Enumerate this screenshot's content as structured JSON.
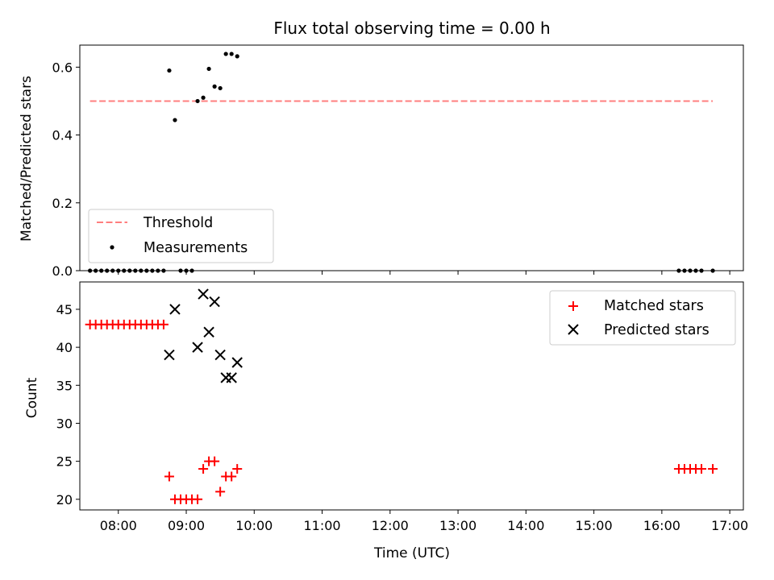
{
  "chart_data": {
    "type": "scatter",
    "title": "Flux total observing time = 0.00 h",
    "xlabel": "Time (UTC)",
    "x_ticks": [
      "08:00",
      "09:00",
      "10:00",
      "11:00",
      "12:00",
      "13:00",
      "14:00",
      "15:00",
      "16:00",
      "17:00"
    ],
    "x_range": [
      "07:26",
      "17:12"
    ],
    "panels": [
      {
        "ylabel": "Matched/Predicted stars",
        "ylim": [
          0.0,
          0.665
        ],
        "y_ticks": [
          0.0,
          0.2,
          0.4,
          0.6
        ],
        "y_tick_labels": [
          "0.0",
          "0.2",
          "0.4",
          "0.6"
        ],
        "legend_position": "lower-left",
        "threshold": {
          "name": "Threshold",
          "value": 0.5,
          "x": [
            "07:35",
            "16:45"
          ],
          "color": "#ff7f7f"
        },
        "measurements": {
          "name": "Measurements",
          "color": "#000000",
          "points": [
            [
              "07:35",
              0
            ],
            [
              "07:40",
              0
            ],
            [
              "07:45",
              0
            ],
            [
              "07:50",
              0
            ],
            [
              "07:55",
              0
            ],
            [
              "08:00",
              0
            ],
            [
              "08:05",
              0
            ],
            [
              "08:10",
              0
            ],
            [
              "08:15",
              0
            ],
            [
              "08:20",
              0
            ],
            [
              "08:25",
              0
            ],
            [
              "08:30",
              0
            ],
            [
              "08:35",
              0
            ],
            [
              "08:40",
              0
            ],
            [
              "08:45",
              0.59
            ],
            [
              "08:50",
              0.444
            ],
            [
              "08:55",
              0
            ],
            [
              "09:00",
              0
            ],
            [
              "09:05",
              0
            ],
            [
              "09:10",
              0.5
            ],
            [
              "09:15",
              0.51
            ],
            [
              "09:20",
              0.595
            ],
            [
              "09:25",
              0.543
            ],
            [
              "09:30",
              0.538
            ],
            [
              "09:35",
              0.639
            ],
            [
              "09:40",
              0.639
            ],
            [
              "09:45",
              0.632
            ],
            [
              "16:15",
              0
            ],
            [
              "16:20",
              0
            ],
            [
              "16:25",
              0
            ],
            [
              "16:30",
              0
            ],
            [
              "16:35",
              0
            ],
            [
              "16:45",
              0
            ]
          ]
        }
      },
      {
        "ylabel": "Count",
        "ylim": [
          18.6,
          48.6
        ],
        "y_ticks": [
          20,
          25,
          30,
          35,
          40,
          45
        ],
        "y_tick_labels": [
          "20",
          "25",
          "30",
          "35",
          "40",
          "45"
        ],
        "legend_position": "upper-right",
        "series": [
          {
            "name": "Matched stars",
            "marker": "+",
            "color": "#ff0000",
            "points": [
              [
                "07:35",
                43
              ],
              [
                "07:40",
                43
              ],
              [
                "07:45",
                43
              ],
              [
                "07:50",
                43
              ],
              [
                "07:55",
                43
              ],
              [
                "08:00",
                43
              ],
              [
                "08:05",
                43
              ],
              [
                "08:10",
                43
              ],
              [
                "08:15",
                43
              ],
              [
                "08:20",
                43
              ],
              [
                "08:25",
                43
              ],
              [
                "08:30",
                43
              ],
              [
                "08:35",
                43
              ],
              [
                "08:40",
                43
              ],
              [
                "08:45",
                23
              ],
              [
                "08:50",
                20
              ],
              [
                "08:55",
                20
              ],
              [
                "09:00",
                20
              ],
              [
                "09:05",
                20
              ],
              [
                "09:10",
                20
              ],
              [
                "09:15",
                24
              ],
              [
                "09:20",
                25
              ],
              [
                "09:25",
                25
              ],
              [
                "09:30",
                21
              ],
              [
                "09:35",
                23
              ],
              [
                "09:40",
                23
              ],
              [
                "09:45",
                24
              ],
              [
                "16:15",
                24
              ],
              [
                "16:20",
                24
              ],
              [
                "16:25",
                24
              ],
              [
                "16:30",
                24
              ],
              [
                "16:35",
                24
              ],
              [
                "16:45",
                24
              ]
            ]
          },
          {
            "name": "Predicted stars",
            "marker": "x",
            "color": "#000000",
            "points": [
              [
                "08:45",
                39
              ],
              [
                "08:50",
                45
              ],
              [
                "09:10",
                40
              ],
              [
                "09:15",
                47
              ],
              [
                "09:20",
                42
              ],
              [
                "09:25",
                46
              ],
              [
                "09:30",
                39
              ],
              [
                "09:35",
                36
              ],
              [
                "09:40",
                36
              ],
              [
                "09:45",
                38
              ]
            ]
          }
        ]
      }
    ]
  }
}
